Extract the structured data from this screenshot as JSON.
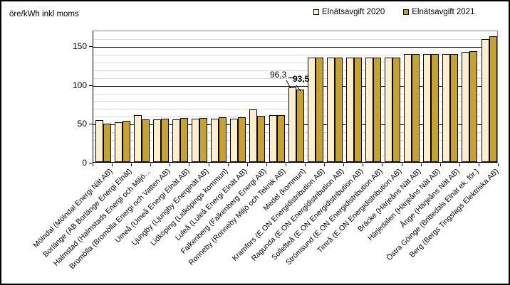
{
  "chart_data": {
    "type": "bar",
    "unit_label": "öre/kWh inkl moms",
    "ylim": [
      0,
      170
    ],
    "yticks": [
      0,
      50,
      100,
      150
    ],
    "minor_gridline_step": 10,
    "major_gridlines": [
      50,
      100,
      150
    ],
    "grid": "on",
    "legend_position": "top-right",
    "categories": [
      "Mölndal (Mölndal Energi Nät AB)",
      "Borlänge (AB Borlänge Energi Elnät)",
      "Halmstad (Halmstads Energi och Miljö…",
      "Bromölla (Bromölla Energi och Vatten AB)",
      "Umeå (Umeå Energi Elnät AB)",
      "Ljungby (Ljungby Energinät AB)",
      "Lidköping (Lidköpings kommun)",
      "Luleå (Luleå Energi Elnät AB)",
      "Falkenberg (Falkenberg Energi AB)",
      "Ronneby (Ronneby Miljö och Teknik AB)",
      "Medel (kommun)",
      "Kramfors (E.ON Energidistribution AB)",
      "Ragunda (E.ON Energidistribution AB)",
      "Sollefteå (E.ON Energidistribution AB)",
      "Strömsund (E.ON Energidistribution AB)",
      "Timrå (E.ON Energidistribution AB)",
      "Bräcke (Härjeåns Nät AB)",
      "Härjedalen (Härjeåns Nät AB)",
      "Ånge (Härjeåns Nät AB)",
      "Östra Göinge (Brittedals Elnät ek. för.)",
      "Berg (Bergs Tingslags Elektriska AB)"
    ],
    "series": [
      {
        "name": "Elnätsavgift 2020",
        "color": "#FBF0CB",
        "values": [
          54,
          51,
          60,
          55,
          55,
          56,
          56,
          56,
          68,
          60,
          96.3,
          134,
          134,
          134,
          134,
          134,
          139,
          139,
          139,
          142,
          158
        ]
      },
      {
        "name": "Elnätsavgift 2021",
        "color": "#C7A32B",
        "values": [
          49,
          53,
          55,
          56,
          57,
          57,
          58,
          58,
          59,
          60,
          93.5,
          134,
          134,
          134,
          134,
          134,
          139,
          139,
          139,
          143,
          162
        ]
      }
    ],
    "annotations": [
      {
        "text": "96,3",
        "series": "Elnätsavgift 2020",
        "category": "Medel (kommun)",
        "value": 96.3
      },
      {
        "text": "93,5",
        "series": "Elnätsavgift 2021",
        "category": "Medel (kommun)",
        "value": 93.5
      }
    ]
  },
  "colors": {
    "bar_2020": "#FBF0CB",
    "bar_2021": "#C7A32B",
    "bar_border": "#000000",
    "minor_gridline": "#D9D9D9",
    "major_gridline": "#000000",
    "plot_border": "#808080",
    "text": "#000000",
    "background": "#FFFFFF"
  }
}
